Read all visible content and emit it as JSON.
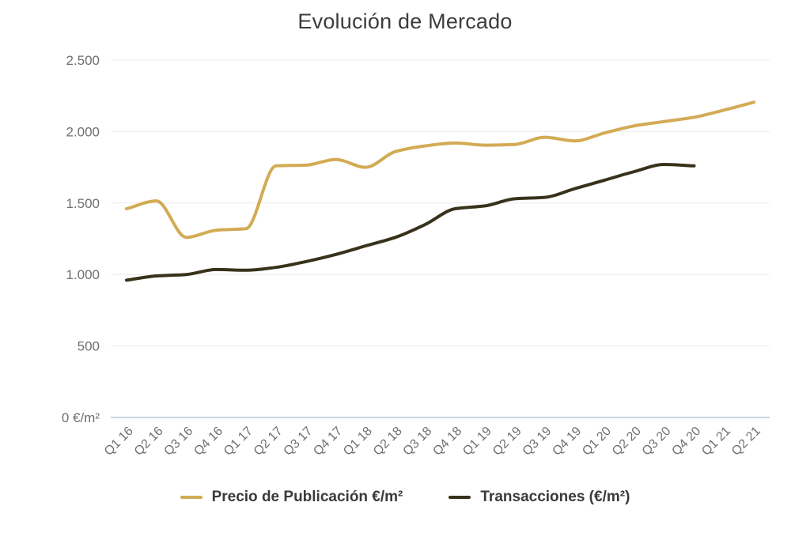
{
  "page": {
    "title": "Evolución de Mercado"
  },
  "chart_data": {
    "type": "line",
    "title": "Evolución de Mercado",
    "categories": [
      "Q1 16",
      "Q2 16",
      "Q3 16",
      "Q4 16",
      "Q1 17",
      "Q2 17",
      "Q3 17",
      "Q4 17",
      "Q1 18",
      "Q2 18",
      "Q3 18",
      "Q4 18",
      "Q1 19",
      "Q2 19",
      "Q3 19",
      "Q4 19",
      "Q1 20",
      "Q2 20",
      "Q3 20",
      "Q4 20",
      "Q1 21",
      "Q2 21"
    ],
    "series": [
      {
        "name": "Precio de Publicación €/m²",
        "color": "#d2ab54",
        "values": [
          1460,
          1515,
          1260,
          1310,
          1320,
          1760,
          1765,
          1805,
          1750,
          1860,
          1900,
          1920,
          1905,
          1910,
          1960,
          1935,
          1990,
          2040,
          2070,
          2100,
          2150,
          2205
        ]
      },
      {
        "name": "Transacciones (€/m²)",
        "color": "#38321b",
        "values": [
          960,
          990,
          1000,
          1035,
          1030,
          1050,
          1090,
          1140,
          1200,
          1260,
          1350,
          1460,
          1480,
          1530,
          1540,
          1600,
          1660,
          1720,
          1770,
          1760
        ]
      }
    ],
    "y_axis": {
      "min": 0,
      "max": 2500,
      "tick_values": [
        0,
        500,
        1000,
        1500,
        2000,
        2500
      ],
      "tick_labels": [
        "0 €/m²",
        "500",
        "1.000",
        "1.500",
        "2.000",
        "2.500"
      ]
    },
    "x_axis": {
      "label_rotation_deg": -45
    },
    "legend_position": "bottom",
    "grid": true,
    "smoothing": "monotone",
    "line_width": 4,
    "colors": {
      "gridline": "#ececec",
      "zero_axis_line": "#c9d4e2",
      "tick_text": "#6f6f6f",
      "title_text": "#3c3c3c",
      "legend_text": "#3a3a3a"
    }
  }
}
